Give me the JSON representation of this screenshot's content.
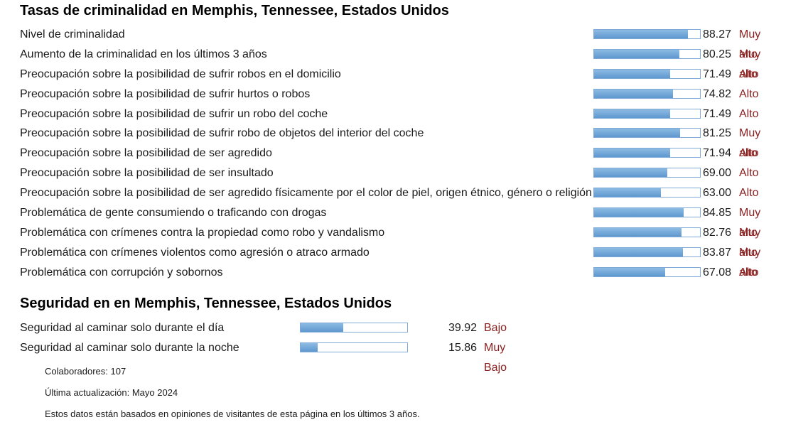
{
  "crime": {
    "title": "Tasas de criminalidad en Memphis, Tennessee, Estados Unidos",
    "rows": [
      {
        "label": "Nivel de criminalidad",
        "value": "88.27",
        "level": "Muy alto",
        "percent": 88.27
      },
      {
        "label": "Aumento de la criminalidad en los últimos 3 años",
        "value": "80.25",
        "level": "Muy alto",
        "percent": 80.25
      },
      {
        "label": "Preocupación sobre la posibilidad de sufrir robos en el domicilio",
        "value": "71.49",
        "level": "Alto",
        "percent": 71.49
      },
      {
        "label": "Preocupación sobre la posibilidad de sufrir hurtos o robos",
        "value": "74.82",
        "level": "Alto",
        "percent": 74.82
      },
      {
        "label": "Preocupación sobre la posibilidad de sufrir un robo del coche",
        "value": "71.49",
        "level": "Alto",
        "percent": 71.49
      },
      {
        "label": "Preocupación sobre la posibilidad de sufrir robo de objetos del interior del coche",
        "value": "81.25",
        "level": "Muy alto",
        "percent": 81.25
      },
      {
        "label": "Preocupación sobre la posibilidad de ser agredido",
        "value": "71.94",
        "level": "Alto",
        "percent": 71.94
      },
      {
        "label": "Preocupación sobre la posibilidad de ser insultado",
        "value": "69.00",
        "level": "Alto",
        "percent": 69.0
      },
      {
        "label": "Preocupación sobre la posibilidad de ser agredido físicamente por el color de piel, origen étnico, género o religión",
        "value": "63.00",
        "level": "Alto",
        "percent": 63.0
      },
      {
        "label": "Problemática de gente consumiendo o traficando con drogas",
        "value": "84.85",
        "level": "Muy alto",
        "percent": 84.85
      },
      {
        "label": "Problemática con crímenes contra la propiedad como robo y vandalismo",
        "value": "82.76",
        "level": "Muy alto",
        "percent": 82.76
      },
      {
        "label": "Problemática con crímenes violentos como agresión o atraco armado",
        "value": "83.87",
        "level": "Muy alto",
        "percent": 83.87
      },
      {
        "label": "Problemática con corrupción y sobornos",
        "value": "67.08",
        "level": "Alto",
        "percent": 67.08
      }
    ]
  },
  "safety": {
    "title": "Seguridad en en Memphis, Tennessee, Estados Unidos",
    "rows": [
      {
        "label": "Seguridad al caminar solo durante el día",
        "value": "39.92",
        "level": "Bajo",
        "percent": 39.92
      },
      {
        "label": "Seguridad al caminar solo durante la noche",
        "value": "15.86",
        "level": "Muy Bajo",
        "percent": 15.86
      }
    ]
  },
  "footer": {
    "contributors": "Colaboradores: 107",
    "updated": "Última actualización: Mayo 2024",
    "note": "Estos datos están basados en opiniones de visitantes de esta página en los últimos 3 años."
  }
}
